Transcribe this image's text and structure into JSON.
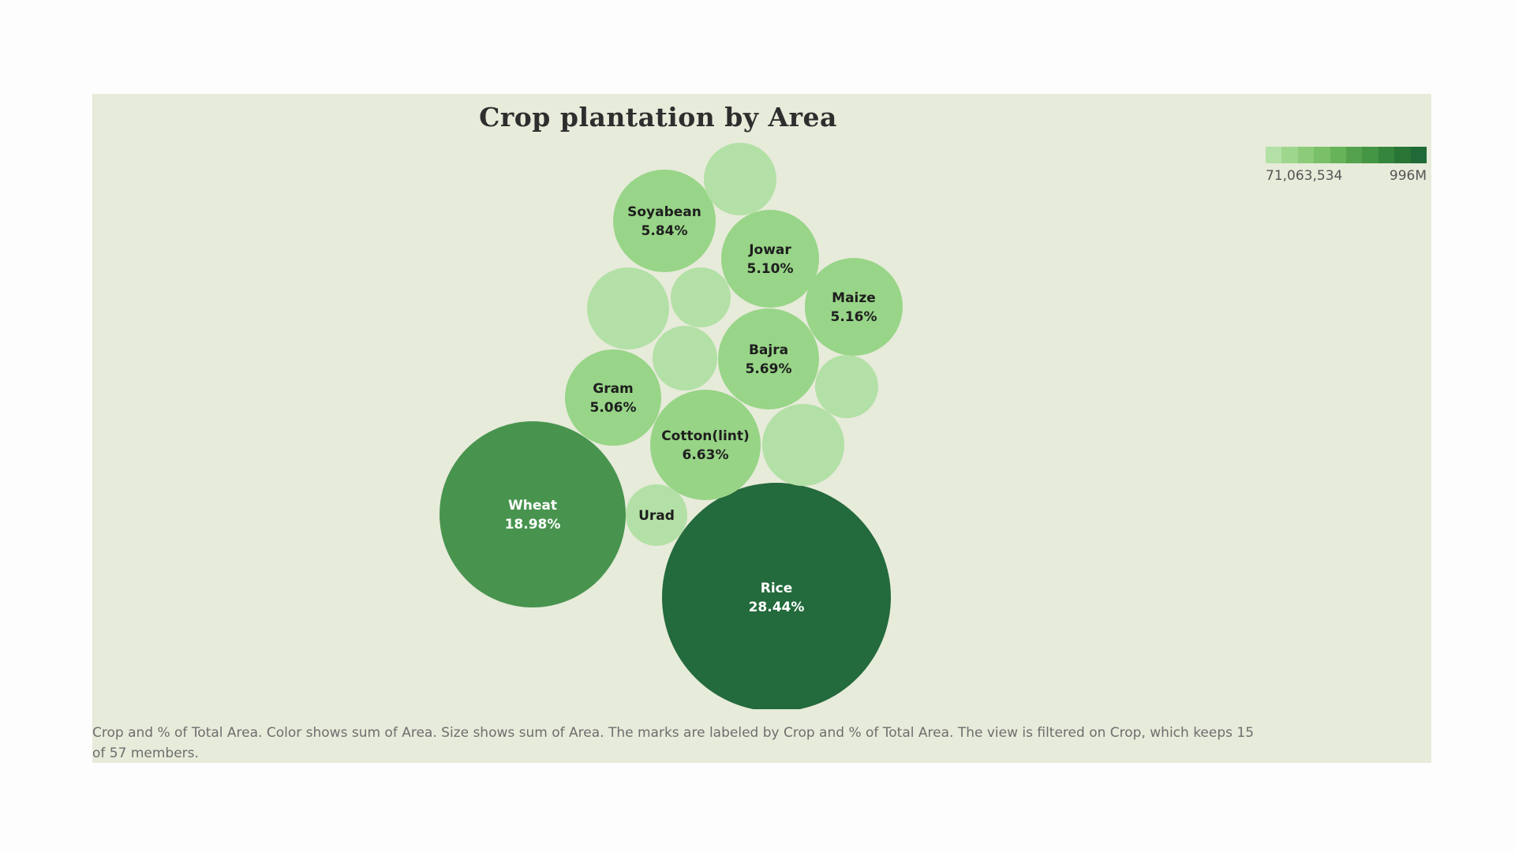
{
  "chart_data": {
    "type": "bubble",
    "title": "Crop plantation by Area",
    "color_scale": {
      "min_label": "71,063,534",
      "max_label": "996M",
      "colors": [
        "#b3e0a6",
        "#9fd68e",
        "#8ccb7a",
        "#79c068",
        "#66b35a",
        "#55a24e",
        "#449544",
        "#35853c",
        "#287535",
        "#1f6a36"
      ]
    },
    "bubbles": [
      {
        "crop": "Rice",
        "pct": "28.44%",
        "color": "#236a3c"
      },
      {
        "crop": "Wheat",
        "pct": "18.98%",
        "color": "#48944f"
      },
      {
        "crop": "Cotton(lint)",
        "pct": "6.63%",
        "color": "#97d486"
      },
      {
        "crop": "Soyabean",
        "pct": "5.84%",
        "color": "#98d588"
      },
      {
        "crop": "Bajra",
        "pct": "5.69%",
        "color": "#98d588"
      },
      {
        "crop": "Maize",
        "pct": "5.16%",
        "color": "#98d588"
      },
      {
        "crop": "Jowar",
        "pct": "5.10%",
        "color": "#98d588"
      },
      {
        "crop": "Gram",
        "pct": "5.06%",
        "color": "#98d588"
      },
      {
        "crop": "Urad",
        "pct": "",
        "color": "#b3e0a6"
      },
      {
        "crop": "",
        "pct": "",
        "color": "#b3e0a6"
      },
      {
        "crop": "",
        "pct": "",
        "color": "#b3e0a6"
      },
      {
        "crop": "",
        "pct": "",
        "color": "#b3e0a6"
      },
      {
        "crop": "",
        "pct": "",
        "color": "#b3e0a6"
      },
      {
        "crop": "",
        "pct": "",
        "color": "#b3e0a6"
      },
      {
        "crop": "",
        "pct": "",
        "color": "#b3e0a6"
      }
    ]
  },
  "caption": "Crop and % of Total Area.  Color shows sum of Area.  Size shows sum of Area.  The marks are labeled by Crop and % of Total Area. The view is filtered on Crop, which keeps 15 of 57 members."
}
